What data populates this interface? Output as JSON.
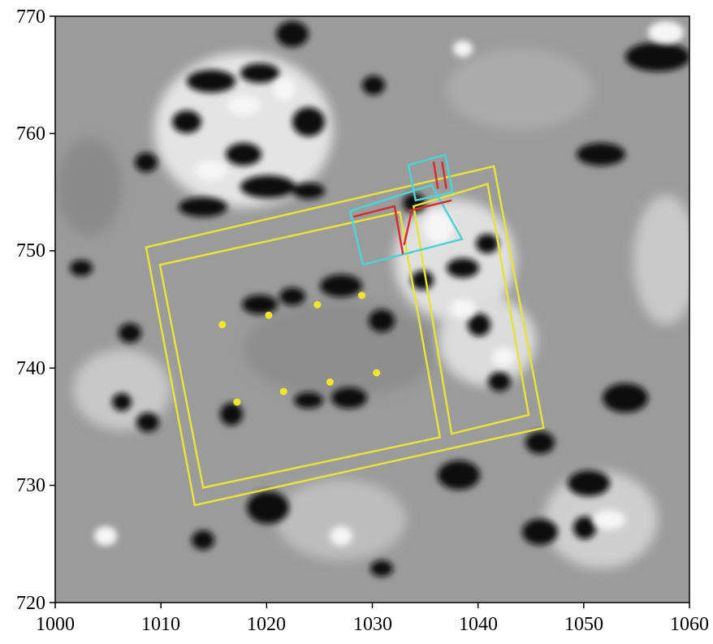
{
  "figure": {
    "colors": {
      "survey_outline": "#e8e23a",
      "feature_red": "#d62d2d",
      "feature_cyan": "#4fd2d6",
      "posthole_dots": "#f2e52a"
    }
  },
  "chart_data": {
    "type": "scatter",
    "title": "",
    "xlabel": "",
    "ylabel": "",
    "xlim": [
      1000,
      1060
    ],
    "ylim": [
      720,
      770
    ],
    "x_ticks": [
      "1000",
      "1010",
      "1020",
      "1030",
      "1040",
      "1050",
      "1060"
    ],
    "y_ticks": [
      "720",
      "730",
      "740",
      "750",
      "760",
      "770"
    ],
    "grid": false,
    "legend": "none",
    "background": "grayscale geophysical survey map",
    "series": [
      {
        "marker": "dot",
        "color": "#f2e52a",
        "points": [
          [
            1015.8,
            743.7
          ],
          [
            1020.2,
            744.5
          ],
          [
            1024.8,
            745.4
          ],
          [
            1029.0,
            746.2
          ],
          [
            1017.2,
            737.1
          ],
          [
            1021.6,
            738.0
          ],
          [
            1026.0,
            738.8
          ],
          [
            1030.4,
            739.6
          ]
        ]
      }
    ],
    "outlines": [
      {
        "kind": "outer-rectangle",
        "color": "#e8e23a",
        "vertices": [
          [
            1008.6,
            750.3
          ],
          [
            1041.5,
            757.2
          ],
          [
            1046.2,
            734.9
          ],
          [
            1013.2,
            728.3
          ]
        ]
      },
      {
        "kind": "inner-room-west",
        "color": "#e8e23a",
        "vertices": [
          [
            1009.9,
            748.8
          ],
          [
            1032.6,
            753.3
          ],
          [
            1036.4,
            734.1
          ],
          [
            1014.0,
            729.8
          ]
        ]
      },
      {
        "kind": "inner-room-east",
        "color": "#e8e23a",
        "vertices": [
          [
            1033.9,
            753.8
          ],
          [
            1040.9,
            755.7
          ],
          [
            1044.8,
            736.0
          ],
          [
            1037.5,
            734.4
          ]
        ]
      },
      {
        "kind": "feature-box-small",
        "color": "#4fd2d6",
        "vertices": [
          [
            1033.4,
            757.3
          ],
          [
            1036.9,
            758.2
          ],
          [
            1037.6,
            755.0
          ],
          [
            1034.1,
            754.3
          ]
        ]
      },
      {
        "kind": "feature-box-large",
        "color": "#4fd2d6",
        "vertices": [
          [
            1027.9,
            753.4
          ],
          [
            1035.6,
            755.6
          ],
          [
            1038.5,
            751.0
          ],
          [
            1029.1,
            748.8
          ]
        ]
      },
      {
        "kind": "feature-red-west",
        "color": "#d62d2d",
        "vertices": [
          [
            1028.2,
            752.9
          ],
          [
            1032.1,
            753.8
          ],
          [
            1032.9,
            749.7
          ]
        ]
      },
      {
        "kind": "feature-red-east",
        "color": "#d62d2d",
        "vertices": [
          [
            1033.4,
            753.4
          ],
          [
            1037.5,
            754.3
          ]
        ]
      },
      {
        "kind": "feature-red-mid",
        "color": "#d62d2d",
        "vertices": [
          [
            1033.7,
            753.3
          ],
          [
            1033.0,
            750.5
          ]
        ]
      },
      {
        "kind": "feature-red-tick",
        "color": "#d62d2d",
        "vertices": [
          [
            1035.8,
            757.6
          ],
          [
            1036.2,
            755.3
          ]
        ]
      },
      {
        "kind": "feature-red-tick",
        "color": "#d62d2d",
        "vertices": [
          [
            1036.6,
            757.6
          ],
          [
            1037.0,
            755.3
          ]
        ]
      }
    ]
  }
}
